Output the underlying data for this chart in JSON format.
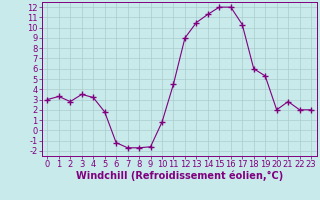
{
  "x": [
    0,
    1,
    2,
    3,
    4,
    5,
    6,
    7,
    8,
    9,
    10,
    11,
    12,
    13,
    14,
    15,
    16,
    17,
    18,
    19,
    20,
    21,
    22,
    23
  ],
  "y": [
    3.0,
    3.3,
    2.8,
    3.5,
    3.2,
    1.8,
    -1.2,
    -1.7,
    -1.7,
    -1.6,
    0.8,
    4.5,
    9.0,
    10.5,
    11.3,
    12.0,
    12.0,
    10.3,
    6.0,
    5.3,
    2.0,
    2.8,
    2.0,
    2.0
  ],
  "line_color": "#800080",
  "marker": "+",
  "marker_size": 4,
  "bg_color": "#c8eaea",
  "grid_color": "#aacccc",
  "xlabel": "Windchill (Refroidissement éolien,°C)",
  "xlim": [
    -0.5,
    23.5
  ],
  "ylim": [
    -2.5,
    12.5
  ],
  "yticks": [
    -2,
    -1,
    0,
    1,
    2,
    3,
    4,
    5,
    6,
    7,
    8,
    9,
    10,
    11,
    12
  ],
  "xticks": [
    0,
    1,
    2,
    3,
    4,
    5,
    6,
    7,
    8,
    9,
    10,
    11,
    12,
    13,
    14,
    15,
    16,
    17,
    18,
    19,
    20,
    21,
    22,
    23
  ],
  "tick_color": "#800080",
  "label_color": "#800080",
  "font_size": 6,
  "xlabel_font_size": 7
}
